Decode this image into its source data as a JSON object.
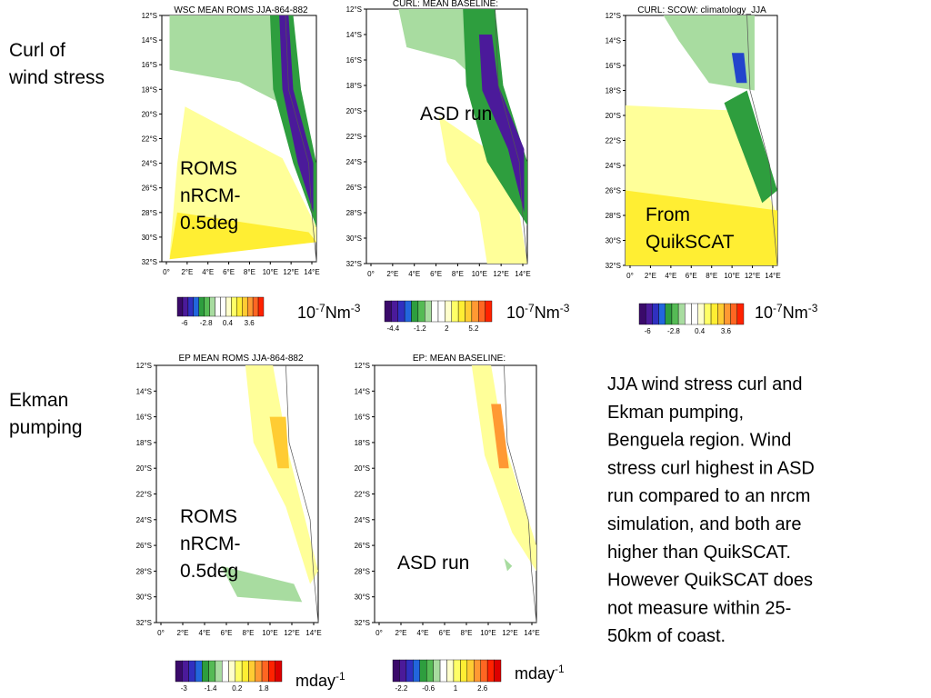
{
  "left_labels": [
    {
      "lines": [
        "Curl of",
        "wind stress"
      ]
    },
    {
      "lines": [
        "Ekman",
        "pumping"
      ]
    }
  ],
  "axes": {
    "lat_labels": [
      "12°S",
      "14°S",
      "16°S",
      "18°S",
      "20°S",
      "22°S",
      "24°S",
      "26°S",
      "28°S",
      "30°S",
      "32°S"
    ],
    "lon_labels": [
      "0°",
      "2°E",
      "4°E",
      "6°E",
      "8°E",
      "10°E",
      "12°E",
      "14°E"
    ]
  },
  "panels": [
    {
      "title": "WSC MEAN ROMS JJA-864-882",
      "label": [
        "ROMS",
        "nRCM-",
        "0.5deg"
      ]
    },
    {
      "title": "CURL: MEAN BASELINE:",
      "label": [
        "ASD run"
      ]
    },
    {
      "title": "CURL: SCOW: climatology_JJA",
      "label": [
        "From",
        "QuikSCAT"
      ]
    },
    {
      "title": "EP MEAN ROMS JJA-864-882",
      "label": [
        "ROMS",
        "nRCM-",
        "0.5deg"
      ]
    },
    {
      "title": "EP: MEAN BASELINE:",
      "label": [
        "ASD run"
      ]
    }
  ],
  "colorbars": [
    {
      "ticks": [
        "-6",
        "-2.8",
        "0.4",
        "3.6"
      ],
      "unit": [
        {
          "text": "10"
        },
        {
          "sup": "-7"
        },
        {
          "text": "Nm"
        },
        {
          "sup": "-3"
        }
      ]
    },
    {
      "ticks": [
        "-4.4",
        "-1.2",
        "2",
        "5.2"
      ],
      "unit": [
        {
          "text": "10"
        },
        {
          "sup": "-7"
        },
        {
          "text": "Nm"
        },
        {
          "sup": "-3"
        }
      ]
    },
    {
      "ticks": [
        "-6",
        "-2.8",
        "0.4",
        "3.6"
      ],
      "unit": [
        {
          "text": "10"
        },
        {
          "sup": "-7"
        },
        {
          "text": "Nm"
        },
        {
          "sup": "-3"
        }
      ]
    },
    {
      "ticks": [
        "-3",
        "-1.4",
        "0.2",
        "1.8"
      ],
      "unit": [
        {
          "text": "mday"
        },
        {
          "sup": "-1"
        }
      ]
    },
    {
      "ticks": [
        "-2.2",
        "-0.6",
        "1",
        "2.6"
      ],
      "unit": [
        {
          "text": "mday"
        },
        {
          "sup": "-1"
        }
      ]
    }
  ],
  "caption": [
    "JJA wind stress curl and",
    "Ekman pumping,",
    "Benguela region. Wind",
    "stress curl highest in ASD",
    "run compared to an nrcm",
    "simulation, and both are",
    "higher than QuikSCAT.",
    "However QuikSCAT does",
    "not measure within 25-",
    "50km of coast."
  ]
}
